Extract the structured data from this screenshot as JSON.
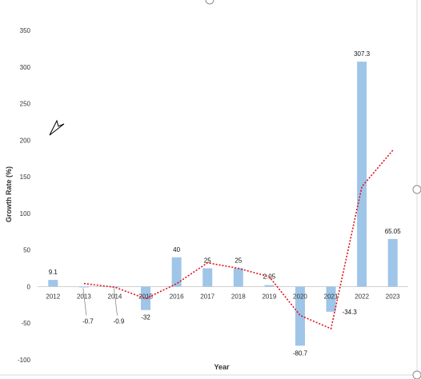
{
  "chart_data": {
    "type": "bar",
    "categories": [
      "2012",
      "2013",
      "2014",
      "2015",
      "2016",
      "2017",
      "2018",
      "2019",
      "2020",
      "2021",
      "2022",
      "2023"
    ],
    "values": [
      9.1,
      -0.7,
      -0.9,
      -32,
      40,
      25,
      25,
      2.05,
      -80.7,
      -34.3,
      307.3,
      65.05
    ],
    "data_labels": [
      "9.1",
      "-0.7",
      "-0.9",
      "-32",
      "40",
      "25",
      "25",
      "2.05",
      "-80.7",
      "-34.3",
      "307.3",
      "65.05"
    ],
    "trendline": {
      "type": "moving-average",
      "style": "dotted",
      "color": "#e0101a"
    },
    "xlabel": "Year",
    "ylabel": "Growth Rate (%)",
    "ylim": [
      -100,
      350
    ],
    "yticks": [
      -100,
      -50,
      0,
      50,
      100,
      150,
      200,
      250,
      300,
      350
    ],
    "grid": false,
    "bar_color": "#9fc5e8"
  }
}
